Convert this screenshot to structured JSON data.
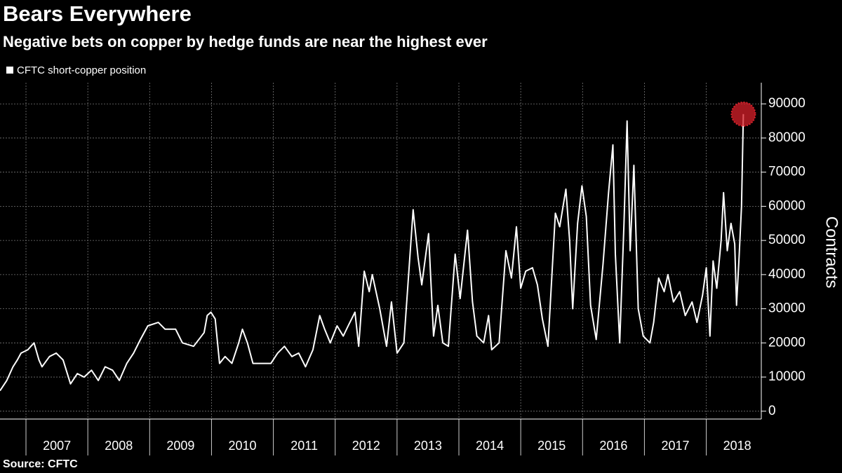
{
  "chart_data": {
    "type": "line",
    "title": "Bears Everywhere",
    "subtitle": "Negative bets on copper by hedge funds are near the highest ever",
    "y_axis_label": "Contracts",
    "source": "Source: CFTC",
    "x": [
      2006.58,
      2006.69,
      2006.79,
      2006.86,
      2006.92,
      2007.03,
      2007.13,
      2007.21,
      2007.26,
      2007.38,
      2007.49,
      2007.6,
      2007.72,
      2007.83,
      2007.94,
      2008.06,
      2008.17,
      2008.28,
      2008.4,
      2008.51,
      2008.63,
      2008.74,
      2008.85,
      2008.97,
      2009.14,
      2009.25,
      2009.42,
      2009.53,
      2009.71,
      2009.88,
      2009.93,
      2009.99,
      2010.06,
      2010.13,
      2010.22,
      2010.33,
      2010.44,
      2010.5,
      2010.58,
      2010.67,
      2010.79,
      2010.96,
      2011.07,
      2011.18,
      2011.3,
      2011.41,
      2011.52,
      2011.64,
      2011.75,
      2011.83,
      2011.92,
      2012.03,
      2012.13,
      2012.21,
      2012.32,
      2012.38,
      2012.47,
      2012.55,
      2012.6,
      2012.72,
      2012.83,
      2012.91,
      2013.0,
      2013.11,
      2013.26,
      2013.34,
      2013.4,
      2013.51,
      2013.59,
      2013.66,
      2013.74,
      2013.83,
      2013.94,
      2014.02,
      2014.14,
      2014.22,
      2014.29,
      2014.4,
      2014.48,
      2014.53,
      2014.65,
      2014.76,
      2014.85,
      2014.93,
      2015.0,
      2015.08,
      2015.19,
      2015.27,
      2015.35,
      2015.44,
      2015.56,
      2015.63,
      2015.73,
      2015.79,
      2015.84,
      2015.92,
      2015.99,
      2016.06,
      2016.13,
      2016.22,
      2016.33,
      2016.42,
      2016.49,
      2016.53,
      2016.6,
      2016.67,
      2016.72,
      2016.77,
      2016.83,
      2016.9,
      2016.98,
      2017.09,
      2017.15,
      2017.23,
      2017.32,
      2017.38,
      2017.47,
      2017.57,
      2017.66,
      2017.77,
      2017.85,
      2017.94,
      2018.0,
      2018.06,
      2018.11,
      2018.17,
      2018.24,
      2018.28,
      2018.34,
      2018.4,
      2018.46,
      2018.49,
      2018.53,
      2018.57,
      2018.6
    ],
    "series": [
      {
        "name": "CFTC short-copper position",
        "color": "#ffffff",
        "values": [
          6000,
          9000,
          13000,
          15000,
          17000,
          18000,
          20000,
          15000,
          13000,
          16000,
          17000,
          15000,
          8000,
          11000,
          10000,
          12000,
          9000,
          13000,
          12000,
          9000,
          14000,
          17000,
          21000,
          25000,
          26000,
          24000,
          24000,
          20000,
          19000,
          23000,
          28000,
          29000,
          27000,
          14000,
          16000,
          14000,
          20000,
          24000,
          20000,
          14000,
          14000,
          14000,
          17000,
          19000,
          16000,
          17000,
          13000,
          18000,
          28000,
          24000,
          20000,
          25000,
          22000,
          25000,
          29000,
          19000,
          41000,
          35000,
          40000,
          30000,
          19000,
          32000,
          17000,
          20000,
          59000,
          45000,
          37000,
          52000,
          22000,
          31000,
          20000,
          19000,
          46000,
          33000,
          53000,
          32000,
          22000,
          20000,
          28000,
          18000,
          20000,
          47000,
          39000,
          54000,
          36000,
          41000,
          42000,
          37000,
          27000,
          19000,
          58000,
          54000,
          65000,
          50000,
          30000,
          55000,
          66000,
          57000,
          31000,
          21000,
          43000,
          64000,
          78000,
          46000,
          20000,
          55000,
          85000,
          47000,
          72000,
          30000,
          22000,
          20000,
          26000,
          39000,
          35000,
          40000,
          32000,
          35000,
          28000,
          32000,
          26000,
          34000,
          42000,
          22000,
          44000,
          36000,
          50000,
          64000,
          47000,
          55000,
          49000,
          31000,
          45000,
          60000,
          87000
        ]
      }
    ],
    "xlim": [
      2006.58,
      2018.89
    ],
    "xticks": [
      2007,
      2008,
      2009,
      2010,
      2011,
      2012,
      2013,
      2014,
      2015,
      2016,
      2017,
      2018
    ],
    "ylim": [
      -2300,
      96200
    ],
    "yticks": [
      0,
      10000,
      20000,
      30000,
      40000,
      50000,
      60000,
      70000,
      80000,
      90000
    ],
    "grid": true,
    "highlight_color": "#d8202a"
  }
}
